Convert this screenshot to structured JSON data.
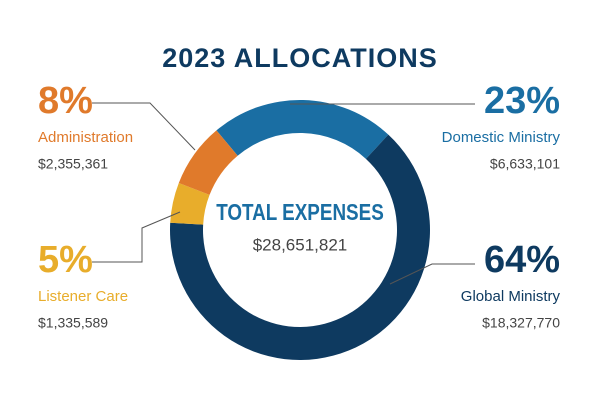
{
  "chart_data": {
    "type": "donut",
    "title": "2023 ALLOCATIONS",
    "center_label": "TOTAL EXPENSES",
    "center_value": "$28,651,821",
    "categories": [
      "Domestic Ministry",
      "Global Ministry",
      "Listener Care",
      "Administration"
    ],
    "values": [
      23,
      64,
      5,
      8
    ],
    "value_labels": [
      "23%",
      "64%",
      "5%",
      "8%"
    ],
    "amounts": [
      "$6,633,101",
      "$18,327,770",
      "$1,335,589",
      "$2,355,361"
    ],
    "colors": [
      "#1a6ea3",
      "#0e3a60",
      "#e8ad2b",
      "#e07a2b"
    ]
  }
}
